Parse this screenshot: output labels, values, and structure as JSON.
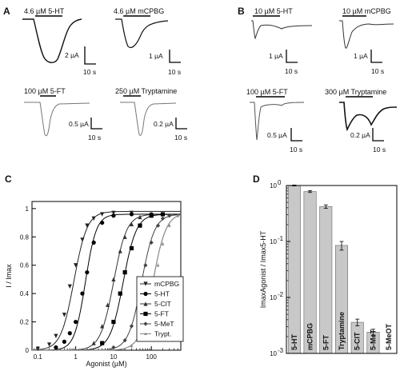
{
  "panels": {
    "A": {
      "letter": "A",
      "traces": [
        {
          "label": "4.6 µM 5-HT",
          "scale_current": "2 µA",
          "scale_time": "10 s"
        },
        {
          "label": "4.6 µM mCPBG",
          "scale_current": "1 µA",
          "scale_time": "10 s"
        },
        {
          "label": "100 µM 5-FT",
          "scale_current": "0.5 µA",
          "scale_time": "10 s"
        },
        {
          "label": "250 µM Tryptamine",
          "scale_current": "0.2 µA",
          "scale_time": "10 s"
        }
      ]
    },
    "B": {
      "letter": "B",
      "traces": [
        {
          "label": "10 µM 5-HT",
          "scale_current": "1 µA",
          "scale_time": "10 s"
        },
        {
          "label": "10 µM mCPBG",
          "scale_current": "1 µA",
          "scale_time": "10 s"
        },
        {
          "label": "100 µM 5-FT",
          "scale_current": "0.5 µA",
          "scale_time": "10 s"
        },
        {
          "label": "300 µM Tryptamine",
          "scale_current": "0.2 µA",
          "scale_time": "10 s"
        }
      ]
    }
  },
  "chart_data": [
    {
      "panel": "C",
      "type": "line",
      "xlabel": "Agonist (µM)",
      "ylabel": "I / Imax",
      "xscale": "log",
      "xlim": [
        0.07,
        600
      ],
      "ylim": [
        0,
        1.05
      ],
      "xticks": [
        {
          "value": 0.1,
          "label": "0.1"
        },
        {
          "value": 1,
          "label": "1"
        },
        {
          "value": 10,
          "label": "10"
        },
        {
          "value": 100,
          "label": "100"
        }
      ],
      "yticks": [
        {
          "value": 0,
          "label": "0"
        },
        {
          "value": 0.2,
          "label": "0.2"
        },
        {
          "value": 0.4,
          "label": "0.4"
        },
        {
          "value": 0.6,
          "label": "0.6"
        },
        {
          "value": 0.8,
          "label": "0.8"
        },
        {
          "value": 1,
          "label": "1"
        }
      ],
      "legend_position": "bottom-right",
      "series": [
        {
          "name": "mCPBG",
          "marker": "triangle-down",
          "color": "#222222",
          "ec50": 0.9,
          "hill": 2.5,
          "top": 0.98,
          "x": [
            0.1,
            0.2,
            0.3,
            0.5,
            0.7,
            1,
            1.5,
            2,
            3,
            5,
            10,
            30
          ],
          "y": [
            0.01,
            0.04,
            0.1,
            0.25,
            0.45,
            0.6,
            0.78,
            0.88,
            0.93,
            0.96,
            0.97,
            0.97
          ]
        },
        {
          "name": "5-HT",
          "marker": "circle",
          "color": "#000000",
          "ec50": 1.8,
          "hill": 3.0,
          "top": 0.96,
          "x": [
            0.3,
            0.5,
            0.7,
            1,
            1.5,
            2,
            3,
            5,
            10,
            30,
            100
          ],
          "y": [
            0.02,
            0.06,
            0.12,
            0.2,
            0.4,
            0.55,
            0.76,
            0.9,
            0.95,
            0.96,
            0.96
          ]
        },
        {
          "name": "5-ClT",
          "marker": "triangle-up",
          "color": "#333333",
          "ec50": 10,
          "hill": 2.5,
          "top": 0.96,
          "x": [
            3,
            5,
            7,
            10,
            15,
            20,
            30,
            50,
            100
          ],
          "y": [
            0.05,
            0.17,
            0.32,
            0.5,
            0.7,
            0.8,
            0.89,
            0.94,
            0.96
          ]
        },
        {
          "name": "5-FT",
          "marker": "square",
          "color": "#000000",
          "ec50": 18,
          "hill": 2.5,
          "top": 0.96,
          "x": [
            5,
            10,
            15,
            20,
            30,
            50,
            100,
            200
          ],
          "y": [
            0.05,
            0.2,
            0.4,
            0.55,
            0.72,
            0.88,
            0.95,
            0.96
          ]
        },
        {
          "name": "5-MeT",
          "marker": "diamond",
          "color": "#444444",
          "ec50": 55,
          "hill": 2.5,
          "top": 0.96,
          "x": [
            10,
            20,
            30,
            50,
            70,
            100,
            150,
            200,
            300
          ],
          "y": [
            0.02,
            0.07,
            0.17,
            0.42,
            0.6,
            0.76,
            0.88,
            0.93,
            0.95
          ]
        },
        {
          "name": "Trypt.",
          "marker": "small-triangle",
          "color": "#888888",
          "ec50": 110,
          "hill": 2.5,
          "top": 0.97,
          "x": [
            30,
            50,
            100,
            150,
            200,
            300,
            500
          ],
          "y": [
            0.03,
            0.1,
            0.38,
            0.6,
            0.75,
            0.88,
            0.95
          ]
        }
      ]
    },
    {
      "panel": "D",
      "type": "bar",
      "yscale": "log",
      "ylabel": "ImaxAgonist / Imax5-HT",
      "ylim": [
        0.001,
        1
      ],
      "yticks": [
        {
          "value": 1,
          "mantissa": "10",
          "exp": "0"
        },
        {
          "value": 0.1,
          "mantissa": "10",
          "exp": "-1"
        },
        {
          "value": 0.01,
          "mantissa": "10",
          "exp": "-2"
        },
        {
          "value": 0.001,
          "mantissa": "10",
          "exp": "-3"
        }
      ],
      "categories": [
        "5-HT",
        "mCPBG",
        "5-FT",
        "Tryptamine",
        "5-ClT",
        "5-MeT",
        "5-MeOT"
      ],
      "values": [
        1.0,
        0.78,
        0.42,
        0.085,
        0.0036,
        0.0024,
        0.001
      ],
      "errors": [
        0.02,
        0.03,
        0.03,
        0.015,
        0.0005,
        0.0003,
        0
      ],
      "bar_color": "#c8c8c8"
    }
  ],
  "panel_letters": {
    "C": "C",
    "D": "D"
  }
}
